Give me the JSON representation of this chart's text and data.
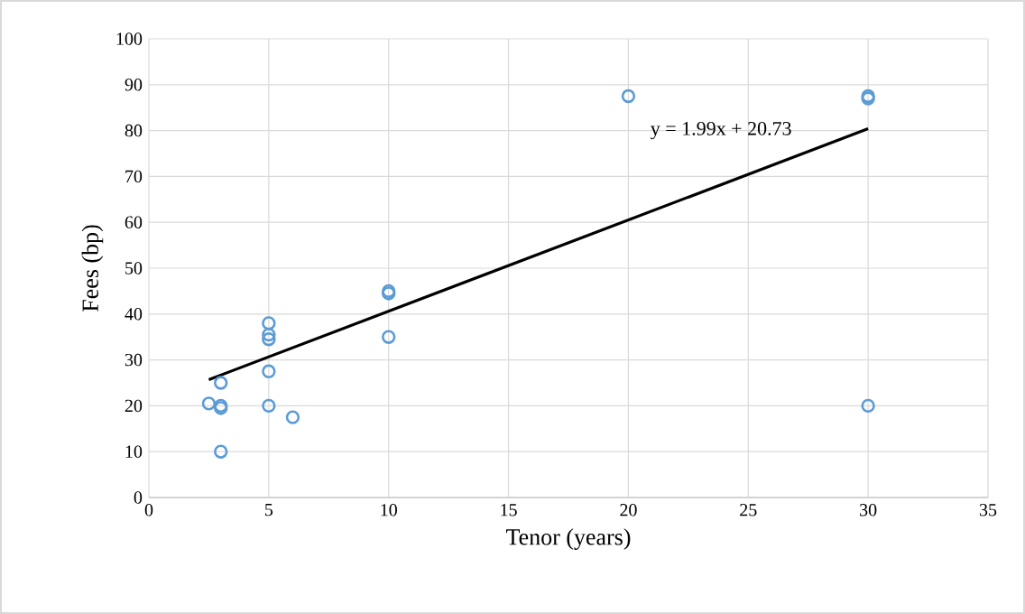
{
  "chart_data": {
    "type": "scatter",
    "xlabel": "Tenor (years)",
    "ylabel": "Fees (bp)",
    "xlim": [
      0,
      35
    ],
    "xticks": [
      0,
      5,
      10,
      15,
      20,
      25,
      30,
      35
    ],
    "ylim": [
      0,
      100
    ],
    "yticks": [
      0,
      10,
      20,
      30,
      40,
      50,
      60,
      70,
      80,
      90,
      100
    ],
    "grid": true,
    "marker": "circle",
    "series": [
      {
        "color": "#5b9bd5",
        "x": [
          2.5,
          3,
          3,
          3,
          3,
          5,
          5,
          5,
          5,
          5,
          6,
          10,
          10,
          10,
          20,
          30,
          30,
          30
        ],
        "values": [
          20.5,
          25,
          20,
          19.5,
          10,
          38,
          35.5,
          34.5,
          27.5,
          20,
          17.5,
          45,
          44.5,
          35,
          87.5,
          87.5,
          87,
          20
        ]
      },
      {
        "type": "line",
        "color": "#000000",
        "marker": "none",
        "x": [
          2.5,
          30
        ],
        "values": [
          25.7,
          80.4
        ]
      }
    ],
    "annotations": [
      "y = 1.99x + 20.73"
    ]
  }
}
